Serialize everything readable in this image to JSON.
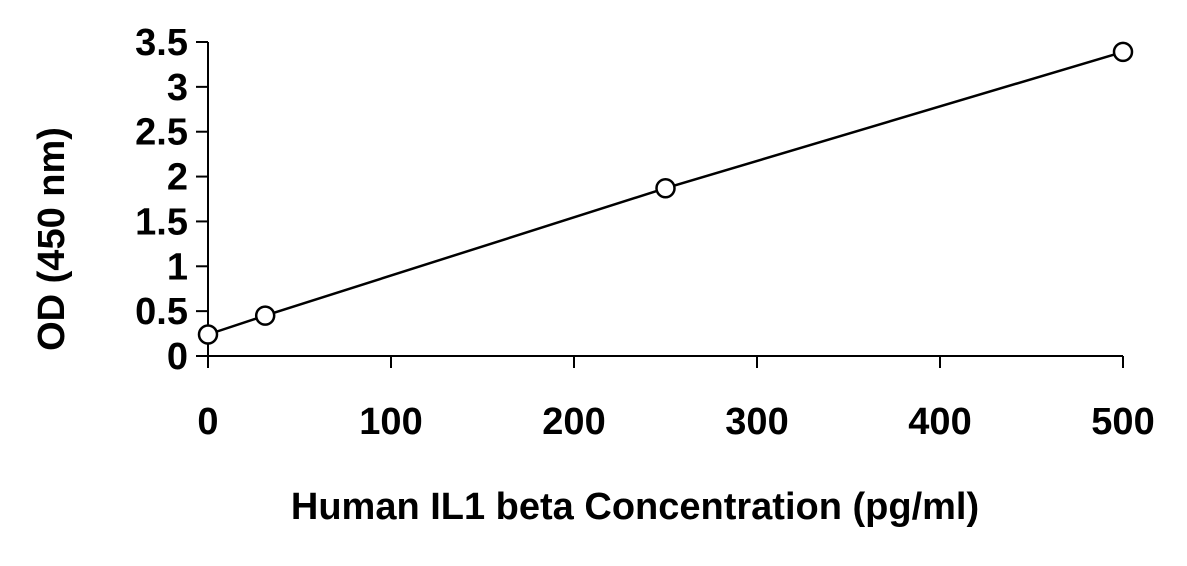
{
  "chart_data": {
    "type": "scatter",
    "title": "",
    "xlabel": "Human IL1 beta Concentration (pg/ml)",
    "ylabel": "OD (450 nm)",
    "xlim": [
      0,
      500
    ],
    "ylim": [
      0,
      3.5
    ],
    "x_ticks": [
      0,
      100,
      200,
      300,
      400,
      500
    ],
    "x_tick_labels": [
      "0",
      "100",
      "200",
      "300",
      "400",
      "500"
    ],
    "y_ticks": [
      0,
      0.5,
      1,
      1.5,
      2,
      2.5,
      3,
      3.5
    ],
    "y_tick_labels": [
      "0",
      "0.5",
      "1",
      "1.5",
      "2",
      "2.5",
      "3",
      "3.5"
    ],
    "grid": false,
    "legend": "none",
    "line_style": "solid line connecting points",
    "marker": "open circle",
    "series": [
      {
        "x": [
          0,
          31.25,
          250,
          500
        ],
        "y": [
          0.24,
          0.45,
          1.87,
          3.39
        ]
      }
    ],
    "colors": {
      "line": "#000000",
      "marker_stroke": "#000000",
      "marker_fill": "#ffffff",
      "axis": "#000000"
    }
  }
}
